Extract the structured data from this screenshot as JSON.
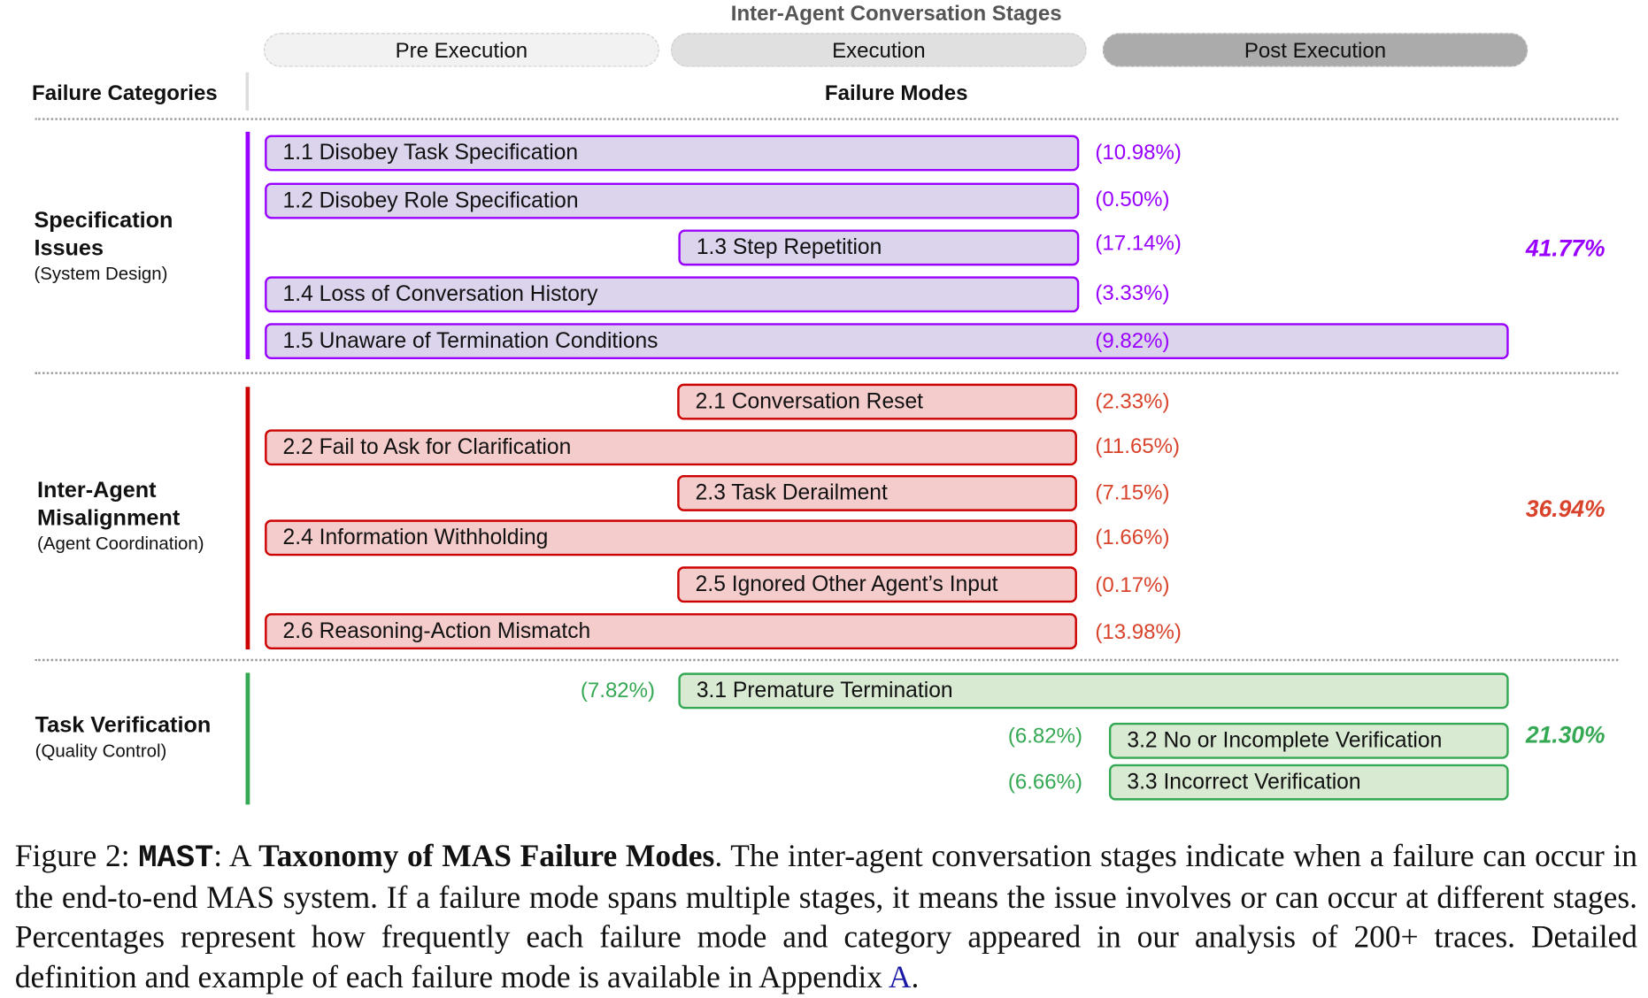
{
  "header": {
    "title": "Inter-Agent Conversation Stages",
    "stages": [
      "Pre Execution",
      "Execution",
      "Post Execution"
    ],
    "categories_label": "Failure Categories",
    "modes_label": "Failure Modes"
  },
  "colors": {
    "specification": "#9900ff",
    "misalignment": "#cc0000",
    "verification": "#34a853"
  },
  "categories": [
    {
      "name_line1": "Specification",
      "name_line2": "Issues",
      "sub": "(System Design)",
      "total": "41.77%",
      "modes": [
        {
          "label": "1.1 Disobey Task Specification",
          "pct": "(10.98%)",
          "stages": [
            "Pre Execution"
          ]
        },
        {
          "label": "1.2 Disobey Role Specification",
          "pct": "(0.50%)",
          "stages": [
            "Pre Execution"
          ]
        },
        {
          "label": "1.3 Step Repetition",
          "pct": "(17.14%)",
          "stages": [
            "Execution"
          ]
        },
        {
          "label": "1.4 Loss of Conversation History",
          "pct": "(3.33%)",
          "stages": [
            "Pre Execution"
          ]
        },
        {
          "label": "1.5 Unaware of Termination Conditions",
          "pct": "(9.82%)",
          "stages": [
            "Pre Execution",
            "Execution",
            "Post Execution"
          ]
        }
      ]
    },
    {
      "name_line1": "Inter-Agent",
      "name_line2": "Misalignment",
      "sub": "(Agent Coordination)",
      "total": "36.94%",
      "modes": [
        {
          "label": "2.1 Conversation Reset",
          "pct": "(2.33%)",
          "stages": [
            "Execution"
          ]
        },
        {
          "label": "2.2 Fail to Ask for Clarification",
          "pct": "(11.65%)",
          "stages": [
            "Pre Execution",
            "Execution"
          ]
        },
        {
          "label": "2.3 Task Derailment",
          "pct": "(7.15%)",
          "stages": [
            "Execution"
          ]
        },
        {
          "label": "2.4 Information Withholding",
          "pct": "(1.66%)",
          "stages": [
            "Pre Execution",
            "Execution"
          ]
        },
        {
          "label": "2.5 Ignored Other Agent’s Input",
          "pct": "(0.17%)",
          "stages": [
            "Execution"
          ]
        },
        {
          "label": "2.6 Reasoning-Action Mismatch",
          "pct": "(13.98%)",
          "stages": [
            "Pre Execution",
            "Execution"
          ]
        }
      ]
    },
    {
      "name_line1": "Task Verification",
      "sub": "(Quality Control)",
      "total": "21.30%",
      "modes": [
        {
          "label": "3.1  Premature Termination",
          "pct": "(7.82%)",
          "stages": [
            "Execution",
            "Post Execution"
          ]
        },
        {
          "label": "3.2 No or Incomplete Verification",
          "pct": "(6.82%)",
          "stages": [
            "Post Execution"
          ]
        },
        {
          "label": "3.3 Incorrect Verification",
          "pct": "(6.66%)",
          "stages": [
            "Post Execution"
          ]
        }
      ]
    }
  ],
  "caption": {
    "prefix": "Figure 2: ",
    "name": "MAST",
    "colon": ": A ",
    "bold_title": "Taxonomy of MAS Failure Modes",
    "body": ". The inter-agent conversation stages indicate when a failure can occur in the end-to-end MAS system. If a failure mode spans multiple stages, it means the issue involves or can occur at different stages. Percentages represent how frequently each failure mode and category appeared in our analysis of 200+ traces. Detailed definition and example of each failure mode is available in Appendix ",
    "link": "A",
    "end": "."
  }
}
